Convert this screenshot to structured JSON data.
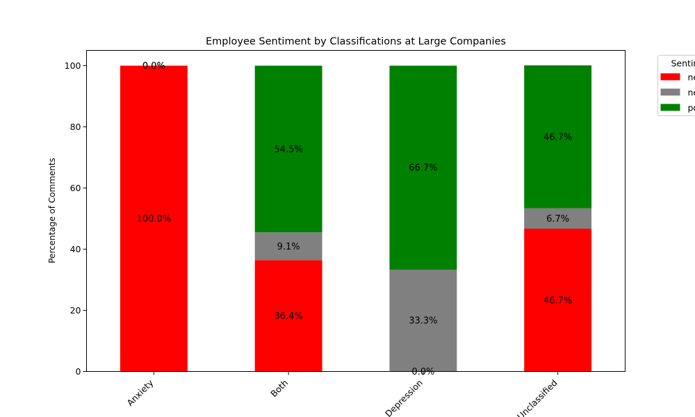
{
  "chart_data": {
    "type": "bar",
    "stacked": true,
    "title": "Employee Sentiment by Classifications at Large Companies",
    "xlabel": "",
    "ylabel": "Percentage of Comments",
    "ylim": [
      0,
      105
    ],
    "yticks": [
      0,
      20,
      40,
      60,
      80,
      100
    ],
    "grid": false,
    "categories": [
      "Anxiety",
      "Both",
      "Depression",
      "Unclassified"
    ],
    "series": [
      {
        "name": "negative",
        "color": "#ff0000",
        "values": [
          100.0,
          36.4,
          0.0,
          46.7
        ],
        "labels": [
          "100.0%",
          "36.4%",
          "0.0%",
          "46.7%"
        ]
      },
      {
        "name": "neutral",
        "color": "#808080",
        "values": [
          0.0,
          9.1,
          33.3,
          6.7
        ],
        "labels": [
          "0.0%",
          "9.1%",
          "33.3%",
          "6.7%"
        ]
      },
      {
        "name": "positive",
        "color": "#008000",
        "values": [
          0.0,
          54.5,
          66.7,
          46.7
        ],
        "labels": [
          "0.0%",
          "54.5%",
          "66.7%",
          "46.7%"
        ]
      }
    ],
    "legend": {
      "title": "Sentiment",
      "placement": "outside-top-right"
    }
  }
}
